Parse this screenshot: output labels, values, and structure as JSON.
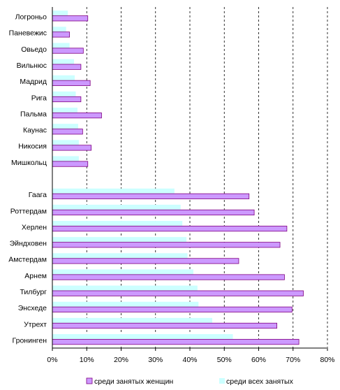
{
  "chart_data": {
    "type": "bar",
    "orientation": "horizontal",
    "categories": [
      "Логроньо",
      "Паневежис",
      "Овьедо",
      "Вильнюс",
      "Мадрид",
      "Рига",
      "Пальма",
      "Каунас",
      "Никосия",
      "Мишкольц",
      "",
      "Гаага",
      "Роттердам",
      "Херлен",
      "Эйндховен",
      "Амстердам",
      "Арнем",
      "Тилбург",
      "Энсхеде",
      "Утрехт",
      "Гронинген"
    ],
    "series": [
      {
        "name": "среди занятых женщин",
        "color": "#cc99ff",
        "values": [
          10.3,
          5.0,
          9.0,
          8.3,
          11.0,
          8.3,
          14.3,
          8.8,
          11.3,
          10.3,
          null,
          57.2,
          58.7,
          68.2,
          66.2,
          54.2,
          67.5,
          73.0,
          69.7,
          65.3,
          71.7
        ]
      },
      {
        "name": "среди всех занятых",
        "color": "#ccffff",
        "values": [
          4.5,
          4.0,
          5.0,
          6.3,
          6.5,
          6.8,
          7.3,
          7.5,
          7.7,
          7.7,
          null,
          35.5,
          37.3,
          37.8,
          39.0,
          39.3,
          41.0,
          42.2,
          42.5,
          46.5,
          52.5
        ]
      }
    ],
    "x_ticks": [
      "0%",
      "10%",
      "20%",
      "30%",
      "40%",
      "50%",
      "60%",
      "70%",
      "80%"
    ],
    "xlim": [
      0,
      80
    ],
    "grid": "vertical dashed",
    "legend_position": "bottom"
  }
}
